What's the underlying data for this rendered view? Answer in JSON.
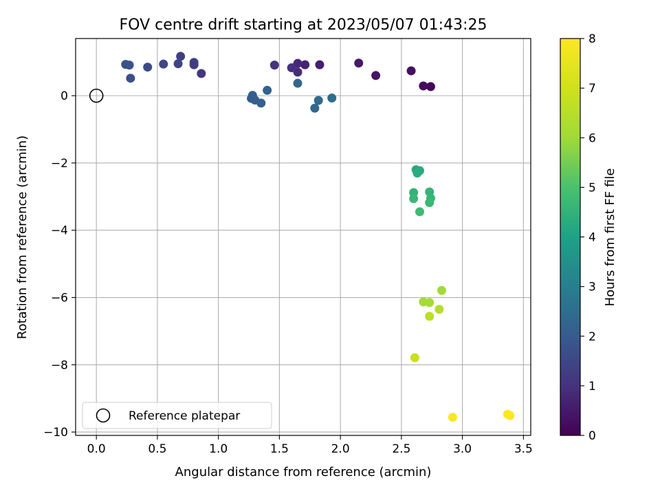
{
  "chart_data": {
    "type": "scatter",
    "title": "FOV centre drift starting at 2023/05/07 01:43:25",
    "xlabel": "Angular distance from reference (arcmin)",
    "ylabel": "Rotation from reference (arcmin)",
    "xlim": [
      -0.17,
      3.56
    ],
    "ylim": [
      -10.1,
      1.7
    ],
    "xticks": [
      0.0,
      0.5,
      1.0,
      1.5,
      2.0,
      2.5,
      3.0,
      3.5
    ],
    "xtick_labels": [
      "0.0",
      "0.5",
      "1.0",
      "1.5",
      "2.0",
      "2.5",
      "3.0",
      "3.5"
    ],
    "yticks": [
      0,
      -2,
      -4,
      -6,
      -8,
      -10
    ],
    "ytick_labels": [
      "0",
      "−2",
      "−4",
      "−6",
      "−8",
      "−10"
    ],
    "grid": true,
    "legend": {
      "label": "Reference platepar",
      "location": "lower-left"
    },
    "reference_point": {
      "x": 0,
      "y": 0,
      "marker": "open-circle"
    },
    "colorbar": {
      "label": "Hours from first FF file",
      "colormap": "viridis",
      "range": [
        0,
        8
      ],
      "ticks": [
        0,
        1,
        2,
        3,
        4,
        5,
        6,
        7,
        8
      ],
      "tick_labels": [
        "0",
        "1",
        "2",
        "3",
        "4",
        "5",
        "6",
        "7",
        "8"
      ]
    },
    "series": [
      {
        "x": [
          2.74,
          2.68,
          2.58,
          2.29,
          2.15,
          1.83,
          1.71,
          1.65,
          1.65,
          1.6,
          1.46,
          0.86,
          0.8,
          0.8,
          0.69,
          0.67,
          0.55,
          0.42,
          0.28,
          0.24,
          0.27,
          1.27,
          1.28,
          1.3,
          1.35,
          1.4,
          1.65,
          1.79,
          1.82,
          1.93
        ],
        "y": [
          0.27,
          0.29,
          0.74,
          0.6,
          0.97,
          0.92,
          0.92,
          0.96,
          0.7,
          0.83,
          0.91,
          0.66,
          0.92,
          0.99,
          1.17,
          0.95,
          0.94,
          0.85,
          0.52,
          0.93,
          0.91,
          -0.08,
          0.01,
          -0.13,
          -0.22,
          0.16,
          0.37,
          -0.37,
          -0.14,
          -0.07
        ],
        "hours": [
          0.1,
          0.2,
          0.3,
          0.4,
          0.5,
          0.6,
          0.7,
          0.8,
          0.9,
          1.0,
          1.05,
          1.1,
          1.2,
          1.25,
          1.3,
          1.4,
          1.5,
          1.6,
          1.7,
          1.75,
          1.8,
          2.0,
          2.05,
          2.1,
          2.15,
          2.2,
          2.3,
          2.35,
          2.4,
          2.45
        ]
      },
      {
        "x": [
          2.62,
          2.65,
          2.63,
          2.6,
          2.73,
          2.74,
          2.6,
          2.73,
          2.65
        ],
        "y": [
          -2.2,
          -2.23,
          -2.3,
          -2.88,
          -2.86,
          -3.05,
          -3.06,
          -3.18,
          -3.45
        ],
        "hours": [
          4.2,
          4.25,
          4.3,
          4.5,
          4.55,
          4.6,
          4.65,
          4.7,
          4.75
        ]
      },
      {
        "x": [
          2.83,
          2.68,
          2.73,
          2.81,
          2.73,
          2.61
        ],
        "y": [
          -5.79,
          -6.13,
          -6.15,
          -6.35,
          -6.56,
          -7.79
        ],
        "hours": [
          6.05,
          6.1,
          6.15,
          6.45,
          6.55,
          6.9
        ]
      },
      {
        "x": [
          2.92,
          3.37,
          3.39
        ],
        "y": [
          -9.56,
          -9.47,
          -9.51
        ],
        "hours": [
          7.9,
          7.95,
          8.0
        ]
      }
    ]
  }
}
